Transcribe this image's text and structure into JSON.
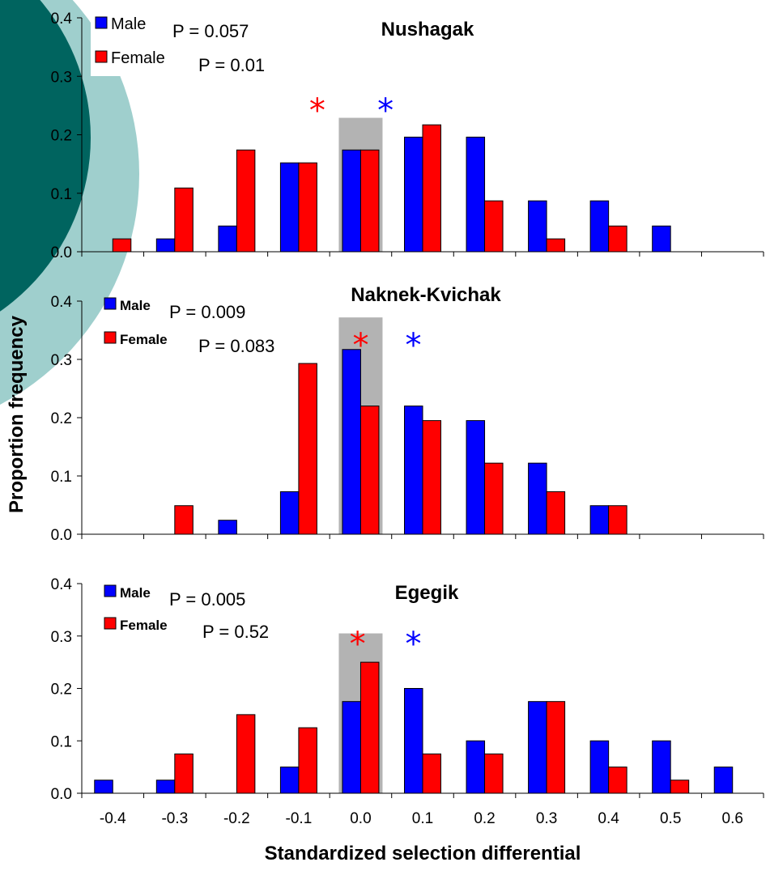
{
  "colors": {
    "male": "#0000ff",
    "female": "#ff0000",
    "highlight": "#b3b3b3",
    "decor_dark": "#00645f",
    "decor_light": "#9fcfcd"
  },
  "labels": {
    "ylabel": "Proportion frequency",
    "xlabel": "Standardized selection differential"
  },
  "chart_data": [
    {
      "type": "bar",
      "title": "Nushagak",
      "categories": [
        "-0.4",
        "-0.3",
        "-0.2",
        "-0.1",
        "0.0",
        "0.1",
        "0.2",
        "0.3",
        "0.4",
        "0.5",
        "0.6"
      ],
      "series": [
        {
          "name": "Male",
          "p_value": "P = 0.057",
          "values": [
            0,
            0.022,
            0.044,
            0.152,
            0.174,
            0.196,
            0.196,
            0.087,
            0.087,
            0.044,
            0
          ]
        },
        {
          "name": "Female",
          "p_value": "P = 0.01",
          "values": [
            0.022,
            0.109,
            0.174,
            0.152,
            0.174,
            0.217,
            0.087,
            0.022,
            0.044,
            0,
            0
          ]
        }
      ],
      "ylim": [
        0,
        0.4
      ],
      "yticks": [
        "0.0",
        "0.1",
        "0.2",
        "0.3",
        "0.4"
      ],
      "highlight_category": "0.0",
      "mean_markers": {
        "Female": -0.07,
        "Male": 0.04
      },
      "legend_style": "plain",
      "legend_placement": "top-left",
      "show_xtick_labels": false
    },
    {
      "type": "bar",
      "title": "Naknek-Kvichak",
      "categories": [
        "-0.4",
        "-0.3",
        "-0.2",
        "-0.1",
        "0.0",
        "0.1",
        "0.2",
        "0.3",
        "0.4",
        "0.5",
        "0.6"
      ],
      "series": [
        {
          "name": "Male",
          "p_value": "P = 0.009",
          "values": [
            0,
            0,
            0.024,
            0.073,
            0.317,
            0.22,
            0.195,
            0.122,
            0.049,
            0,
            0
          ]
        },
        {
          "name": "Female",
          "p_value": "P = 0.083",
          "values": [
            0,
            0.049,
            0,
            0.293,
            0.22,
            0.195,
            0.122,
            0.073,
            0.049,
            0,
            0
          ]
        }
      ],
      "ylim": [
        0,
        0.4
      ],
      "yticks": [
        "0.0",
        "0.1",
        "0.2",
        "0.3",
        "0.4"
      ],
      "highlight_category": "0.0",
      "mean_markers": {
        "Female": 0.0,
        "Male": 0.085
      },
      "legend_style": "bold",
      "legend_placement": "top-left",
      "show_xtick_labels": false
    },
    {
      "type": "bar",
      "title": "Egegik",
      "categories": [
        "-0.4",
        "-0.3",
        "-0.2",
        "-0.1",
        "0.0",
        "0.1",
        "0.2",
        "0.3",
        "0.4",
        "0.5",
        "0.6"
      ],
      "series": [
        {
          "name": "Male",
          "p_value": "P = 0.005",
          "values": [
            0.025,
            0.025,
            0,
            0.05,
            0.175,
            0.2,
            0.1,
            0.175,
            0.1,
            0.1,
            0.05
          ]
        },
        {
          "name": "Female",
          "p_value": "P = 0.52",
          "values": [
            0,
            0.075,
            0.15,
            0.125,
            0.25,
            0.075,
            0.075,
            0.175,
            0.05,
            0.025,
            0
          ]
        }
      ],
      "ylim": [
        0,
        0.4
      ],
      "yticks": [
        "0.0",
        "0.1",
        "0.2",
        "0.3",
        "0.4"
      ],
      "highlight_category": "0.0",
      "mean_markers": {
        "Female": -0.005,
        "Male": 0.085
      },
      "legend_style": "bold",
      "legend_placement": "top-left",
      "show_xtick_labels": true
    }
  ]
}
